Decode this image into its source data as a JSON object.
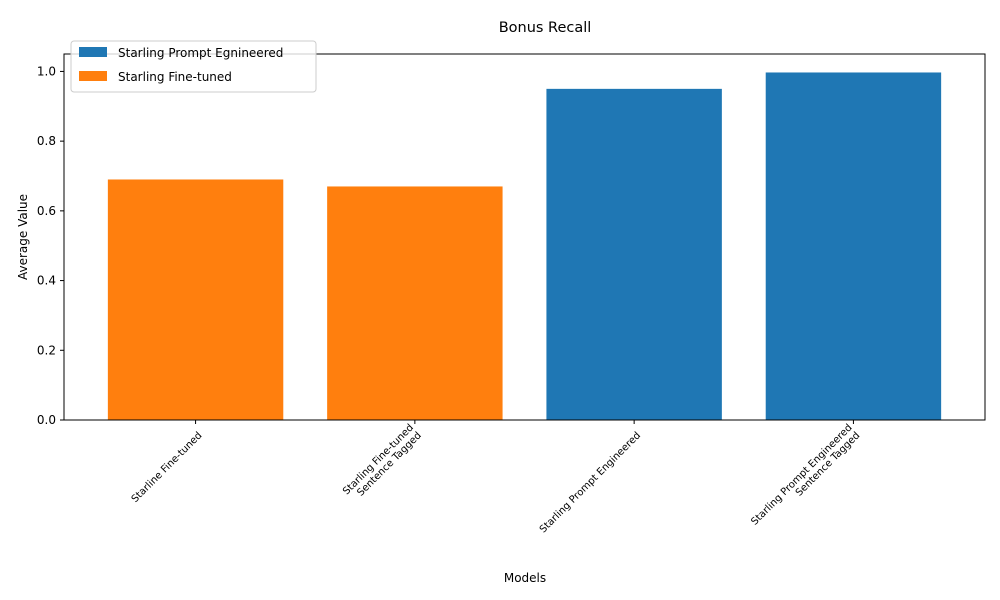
{
  "chart_data": {
    "type": "bar",
    "title": "Bonus Recall",
    "xlabel": "Models",
    "ylabel": "Average Value",
    "ylim": [
      0,
      1.05
    ],
    "yticks": [
      "0.0",
      "0.2",
      "0.4",
      "0.6",
      "0.8",
      "1.0"
    ],
    "categories": [
      [
        "Starline Fine-tuned"
      ],
      [
        "Starling Fine-tuned",
        "Sentence Tagged"
      ],
      [
        "Starling Prompt Engineered"
      ],
      [
        "Starling Prompt Engineered",
        "Sentence Tagged"
      ]
    ],
    "values": [
      0.69,
      0.67,
      0.95,
      0.997
    ],
    "bar_series": [
      1,
      1,
      0,
      0
    ],
    "series": [
      {
        "name": "Starling Prompt Egnineered",
        "color": "#1f77b4"
      },
      {
        "name": "Starling Fine-tuned",
        "color": "#ff7f0e"
      }
    ],
    "legend_position": "top-left",
    "grid": false
  }
}
